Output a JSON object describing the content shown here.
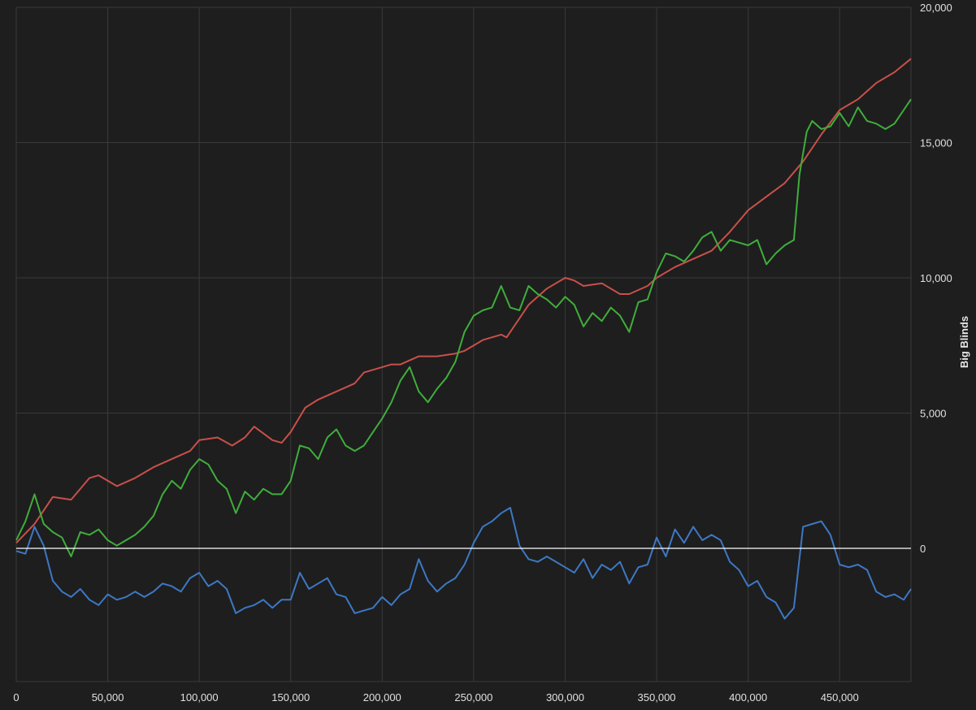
{
  "chart_data": {
    "type": "line",
    "title": "",
    "xlabel": "",
    "ylabel": "Big Blinds",
    "xlim": [
      0,
      489000
    ],
    "ylim": [
      -4900,
      20000
    ],
    "x_ticks": [
      0,
      50000,
      100000,
      150000,
      200000,
      250000,
      300000,
      350000,
      400000,
      450000
    ],
    "x_tick_labels": [
      "0",
      "50,000",
      "100,000",
      "150,000",
      "200,000",
      "250,000",
      "300,000",
      "350,000",
      "400,000",
      "450,000"
    ],
    "y_ticks": [
      0,
      5000,
      10000,
      15000,
      20000
    ],
    "y_tick_labels": [
      "0",
      "5,000",
      "10,000",
      "15,000",
      "20,000"
    ],
    "grid": true,
    "y_axis_position": "right",
    "zero_line": true,
    "colors": {
      "background": "#1e1e1e",
      "grid": "#3a3a3a",
      "zero_line": "#ffffff",
      "text": "#e0e0e0"
    },
    "series": [
      {
        "color": "#c8504a",
        "x": [
          0,
          10000,
          20000,
          30000,
          40000,
          45000,
          55000,
          65000,
          75000,
          85000,
          95000,
          100000,
          110000,
          118000,
          125000,
          130000,
          140000,
          145000,
          150000,
          158000,
          165000,
          175000,
          185000,
          190000,
          200000,
          205000,
          210000,
          220000,
          230000,
          240000,
          245000,
          250000,
          255000,
          265000,
          268000,
          275000,
          280000,
          290000,
          300000,
          305000,
          310000,
          320000,
          330000,
          335000,
          345000,
          350000,
          360000,
          370000,
          380000,
          390000,
          400000,
          410000,
          420000,
          430000,
          440000,
          450000,
          460000,
          470000,
          480000,
          489000
        ],
        "y": [
          200,
          900,
          1900,
          1800,
          2600,
          2700,
          2300,
          2600,
          3000,
          3300,
          3600,
          4000,
          4100,
          3800,
          4100,
          4500,
          4000,
          3900,
          4300,
          5200,
          5500,
          5800,
          6100,
          6500,
          6700,
          6800,
          6800,
          7100,
          7100,
          7200,
          7300,
          7500,
          7700,
          7900,
          7800,
          8500,
          9000,
          9600,
          10000,
          9900,
          9700,
          9800,
          9400,
          9400,
          9700,
          10000,
          10400,
          10700,
          11000,
          11700,
          12500,
          13000,
          13500,
          14300,
          15300,
          16200,
          16600,
          17200,
          17600,
          18100
        ]
      },
      {
        "color": "#3fae3b",
        "x": [
          0,
          5000,
          10000,
          15000,
          20000,
          25000,
          30000,
          35000,
          40000,
          45000,
          50000,
          55000,
          60000,
          65000,
          70000,
          75000,
          80000,
          85000,
          90000,
          95000,
          100000,
          105000,
          110000,
          115000,
          120000,
          125000,
          130000,
          135000,
          140000,
          145000,
          150000,
          155000,
          160000,
          165000,
          170000,
          175000,
          180000,
          185000,
          190000,
          195000,
          200000,
          205000,
          210000,
          215000,
          220000,
          225000,
          230000,
          235000,
          240000,
          245000,
          250000,
          255000,
          260000,
          265000,
          270000,
          275000,
          280000,
          285000,
          290000,
          295000,
          300000,
          305000,
          310000,
          315000,
          320000,
          325000,
          330000,
          335000,
          340000,
          345000,
          350000,
          355000,
          360000,
          365000,
          370000,
          375000,
          380000,
          385000,
          390000,
          395000,
          400000,
          405000,
          410000,
          415000,
          420000,
          425000,
          428000,
          432000,
          435000,
          440000,
          445000,
          450000,
          455000,
          460000,
          465000,
          470000,
          475000,
          480000,
          485000,
          489000
        ],
        "y": [
          300,
          1000,
          2000,
          900,
          600,
          400,
          -300,
          600,
          500,
          700,
          300,
          100,
          300,
          500,
          800,
          1200,
          2000,
          2500,
          2200,
          2900,
          3300,
          3100,
          2500,
          2200,
          1300,
          2100,
          1800,
          2200,
          2000,
          2000,
          2500,
          3800,
          3700,
          3300,
          4100,
          4400,
          3800,
          3600,
          3800,
          4300,
          4800,
          5400,
          6200,
          6700,
          5800,
          5400,
          5900,
          6300,
          6900,
          8000,
          8600,
          8800,
          8900,
          9700,
          8900,
          8800,
          9700,
          9400,
          9200,
          8900,
          9300,
          9000,
          8200,
          8700,
          8400,
          8900,
          8600,
          8000,
          9100,
          9200,
          10200,
          10900,
          10800,
          10600,
          11000,
          11500,
          11700,
          11000,
          11400,
          11300,
          11200,
          11400,
          10500,
          10900,
          11200,
          11400,
          13800,
          15400,
          15800,
          15500,
          15600,
          16100,
          15600,
          16300,
          15800,
          15700,
          15500,
          15700,
          16200,
          16600
        ]
      },
      {
        "color": "#3d78c4",
        "x": [
          0,
          5000,
          10000,
          15000,
          20000,
          25000,
          30000,
          35000,
          40000,
          45000,
          50000,
          55000,
          60000,
          65000,
          70000,
          75000,
          80000,
          85000,
          90000,
          95000,
          100000,
          105000,
          110000,
          115000,
          120000,
          125000,
          130000,
          135000,
          140000,
          145000,
          150000,
          155000,
          160000,
          165000,
          170000,
          175000,
          180000,
          185000,
          190000,
          195000,
          200000,
          205000,
          210000,
          215000,
          220000,
          225000,
          230000,
          235000,
          240000,
          245000,
          250000,
          255000,
          260000,
          265000,
          270000,
          275000,
          280000,
          285000,
          290000,
          295000,
          300000,
          305000,
          310000,
          315000,
          320000,
          325000,
          330000,
          335000,
          340000,
          345000,
          350000,
          355000,
          360000,
          365000,
          370000,
          375000,
          380000,
          385000,
          390000,
          395000,
          400000,
          405000,
          410000,
          415000,
          420000,
          425000,
          430000,
          435000,
          440000,
          445000,
          450000,
          455000,
          460000,
          465000,
          470000,
          475000,
          480000,
          485000,
          489000
        ],
        "y": [
          -100,
          -200,
          800,
          100,
          -1200,
          -1600,
          -1800,
          -1500,
          -1900,
          -2100,
          -1700,
          -1900,
          -1800,
          -1600,
          -1800,
          -1600,
          -1300,
          -1400,
          -1600,
          -1100,
          -900,
          -1400,
          -1200,
          -1500,
          -2400,
          -2200,
          -2100,
          -1900,
          -2200,
          -1900,
          -1900,
          -900,
          -1500,
          -1300,
          -1100,
          -1700,
          -1800,
          -2400,
          -2300,
          -2200,
          -1800,
          -2100,
          -1700,
          -1500,
          -400,
          -1200,
          -1600,
          -1300,
          -1100,
          -600,
          200,
          800,
          1000,
          1300,
          1500,
          100,
          -400,
          -500,
          -300,
          -500,
          -700,
          -900,
          -400,
          -1100,
          -600,
          -800,
          -500,
          -1300,
          -700,
          -600,
          400,
          -300,
          700,
          200,
          800,
          300,
          500,
          300,
          -500,
          -800,
          -1400,
          -1200,
          -1800,
          -2000,
          -2600,
          -2200,
          800,
          900,
          1000,
          500,
          -600,
          -700,
          -600,
          -800,
          -1600,
          -1800,
          -1700,
          -1900,
          -1500
        ]
      }
    ]
  }
}
